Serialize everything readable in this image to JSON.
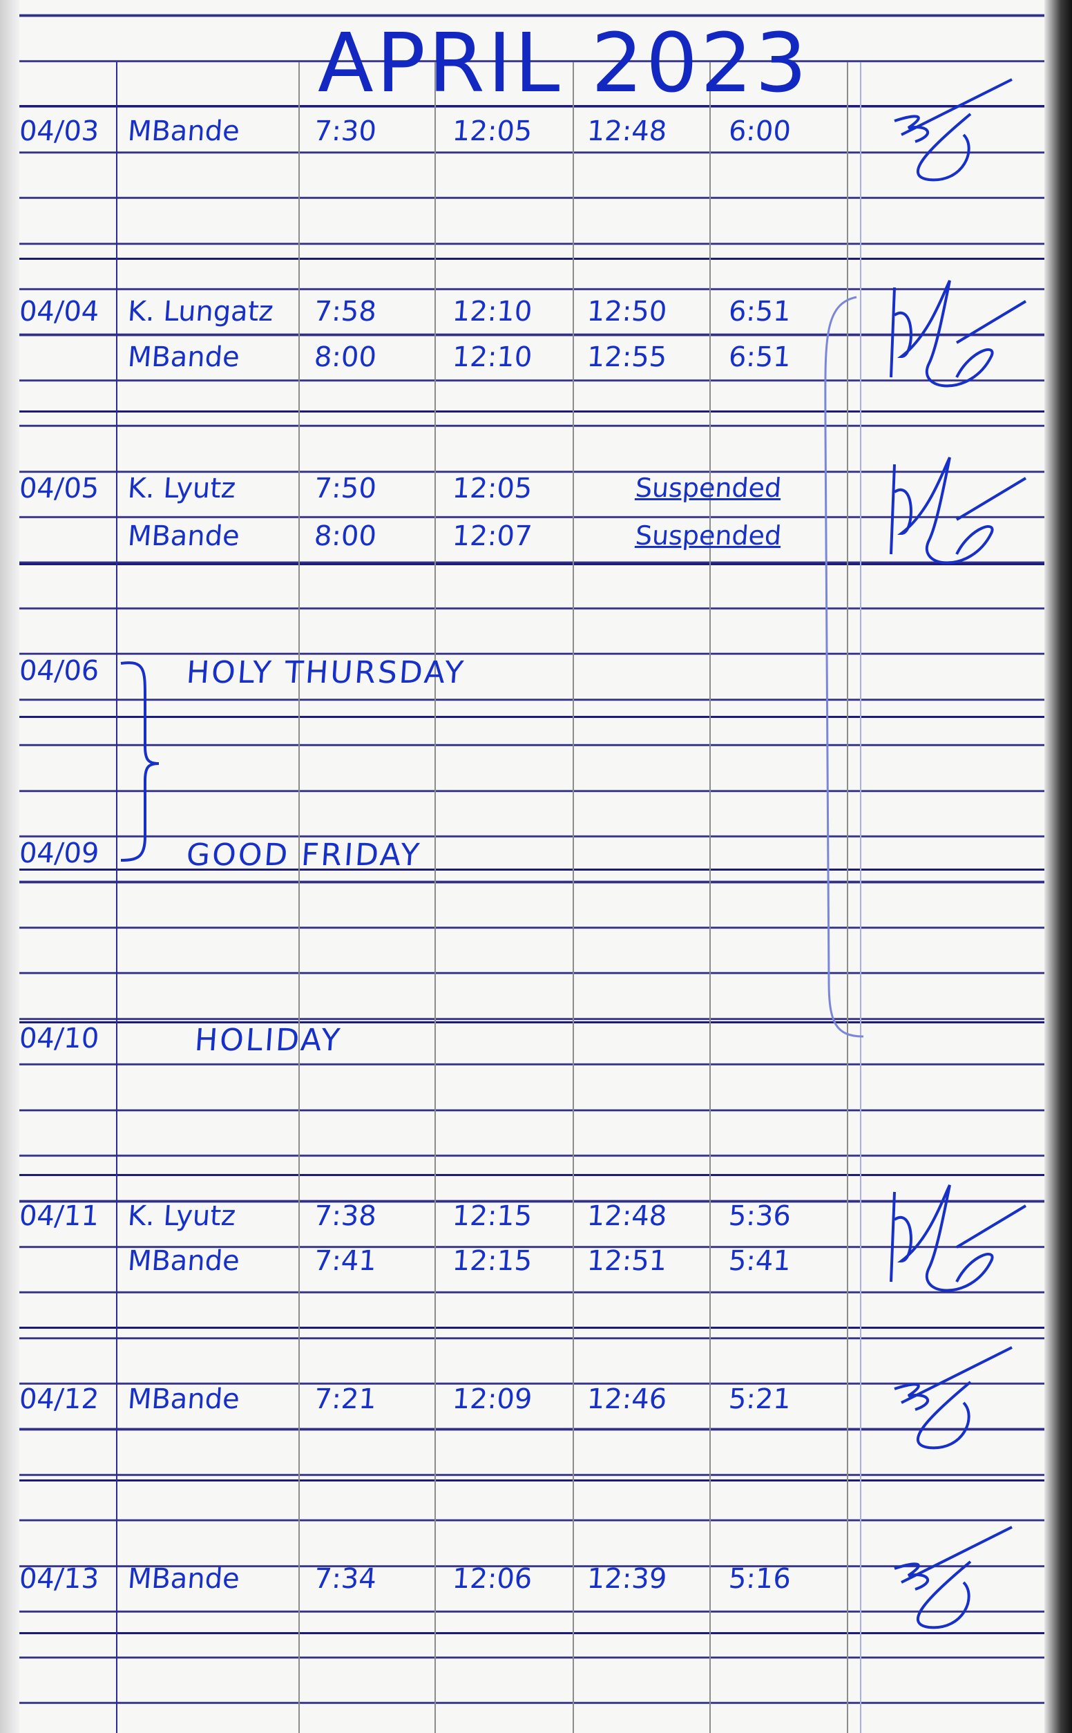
{
  "header": {
    "title": "APRIL 2023"
  },
  "ink_color": "#1630c8",
  "entries": [
    {
      "date": "04/03",
      "rows": [
        {
          "name": "MBande",
          "times": [
            "7:30",
            "12:05",
            "12:48",
            "6:00"
          ]
        }
      ],
      "signed": true
    },
    {
      "date": "04/04",
      "rows": [
        {
          "name": "K. Lungatz",
          "times": [
            "7:58",
            "12:10",
            "12:50",
            "6:51"
          ]
        },
        {
          "name": "MBande",
          "times": [
            "8:00",
            "12:10",
            "12:55",
            "6:51"
          ]
        }
      ],
      "signed": true
    },
    {
      "date": "04/05",
      "rows": [
        {
          "name": "K. Lyutz",
          "times": [
            "7:50",
            "12:05",
            "Suspended",
            ""
          ]
        },
        {
          "name": "MBande",
          "times": [
            "8:00",
            "12:07",
            "Suspended",
            ""
          ]
        }
      ],
      "signed": true
    },
    {
      "date": "04/06",
      "note": "HOLY THURSDAY"
    },
    {
      "date": "04/09",
      "note": "GOOD FRIDAY"
    },
    {
      "date": "04/10",
      "note": "HOLIDAY"
    },
    {
      "date": "04/11",
      "rows": [
        {
          "name": "K. Lyutz",
          "times": [
            "7:38",
            "12:15",
            "12:48",
            "5:36"
          ]
        },
        {
          "name": "MBande",
          "times": [
            "7:41",
            "12:15",
            "12:51",
            "5:41"
          ]
        }
      ],
      "signed": true
    },
    {
      "date": "04/12",
      "rows": [
        {
          "name": "MBande",
          "times": [
            "7:21",
            "12:09",
            "12:46",
            "5:21"
          ]
        }
      ],
      "signed": true
    },
    {
      "date": "04/13",
      "rows": [
        {
          "name": "MBande",
          "times": [
            "7:34",
            "12:06",
            "12:39",
            "5:16"
          ]
        }
      ],
      "signed": true
    }
  ]
}
